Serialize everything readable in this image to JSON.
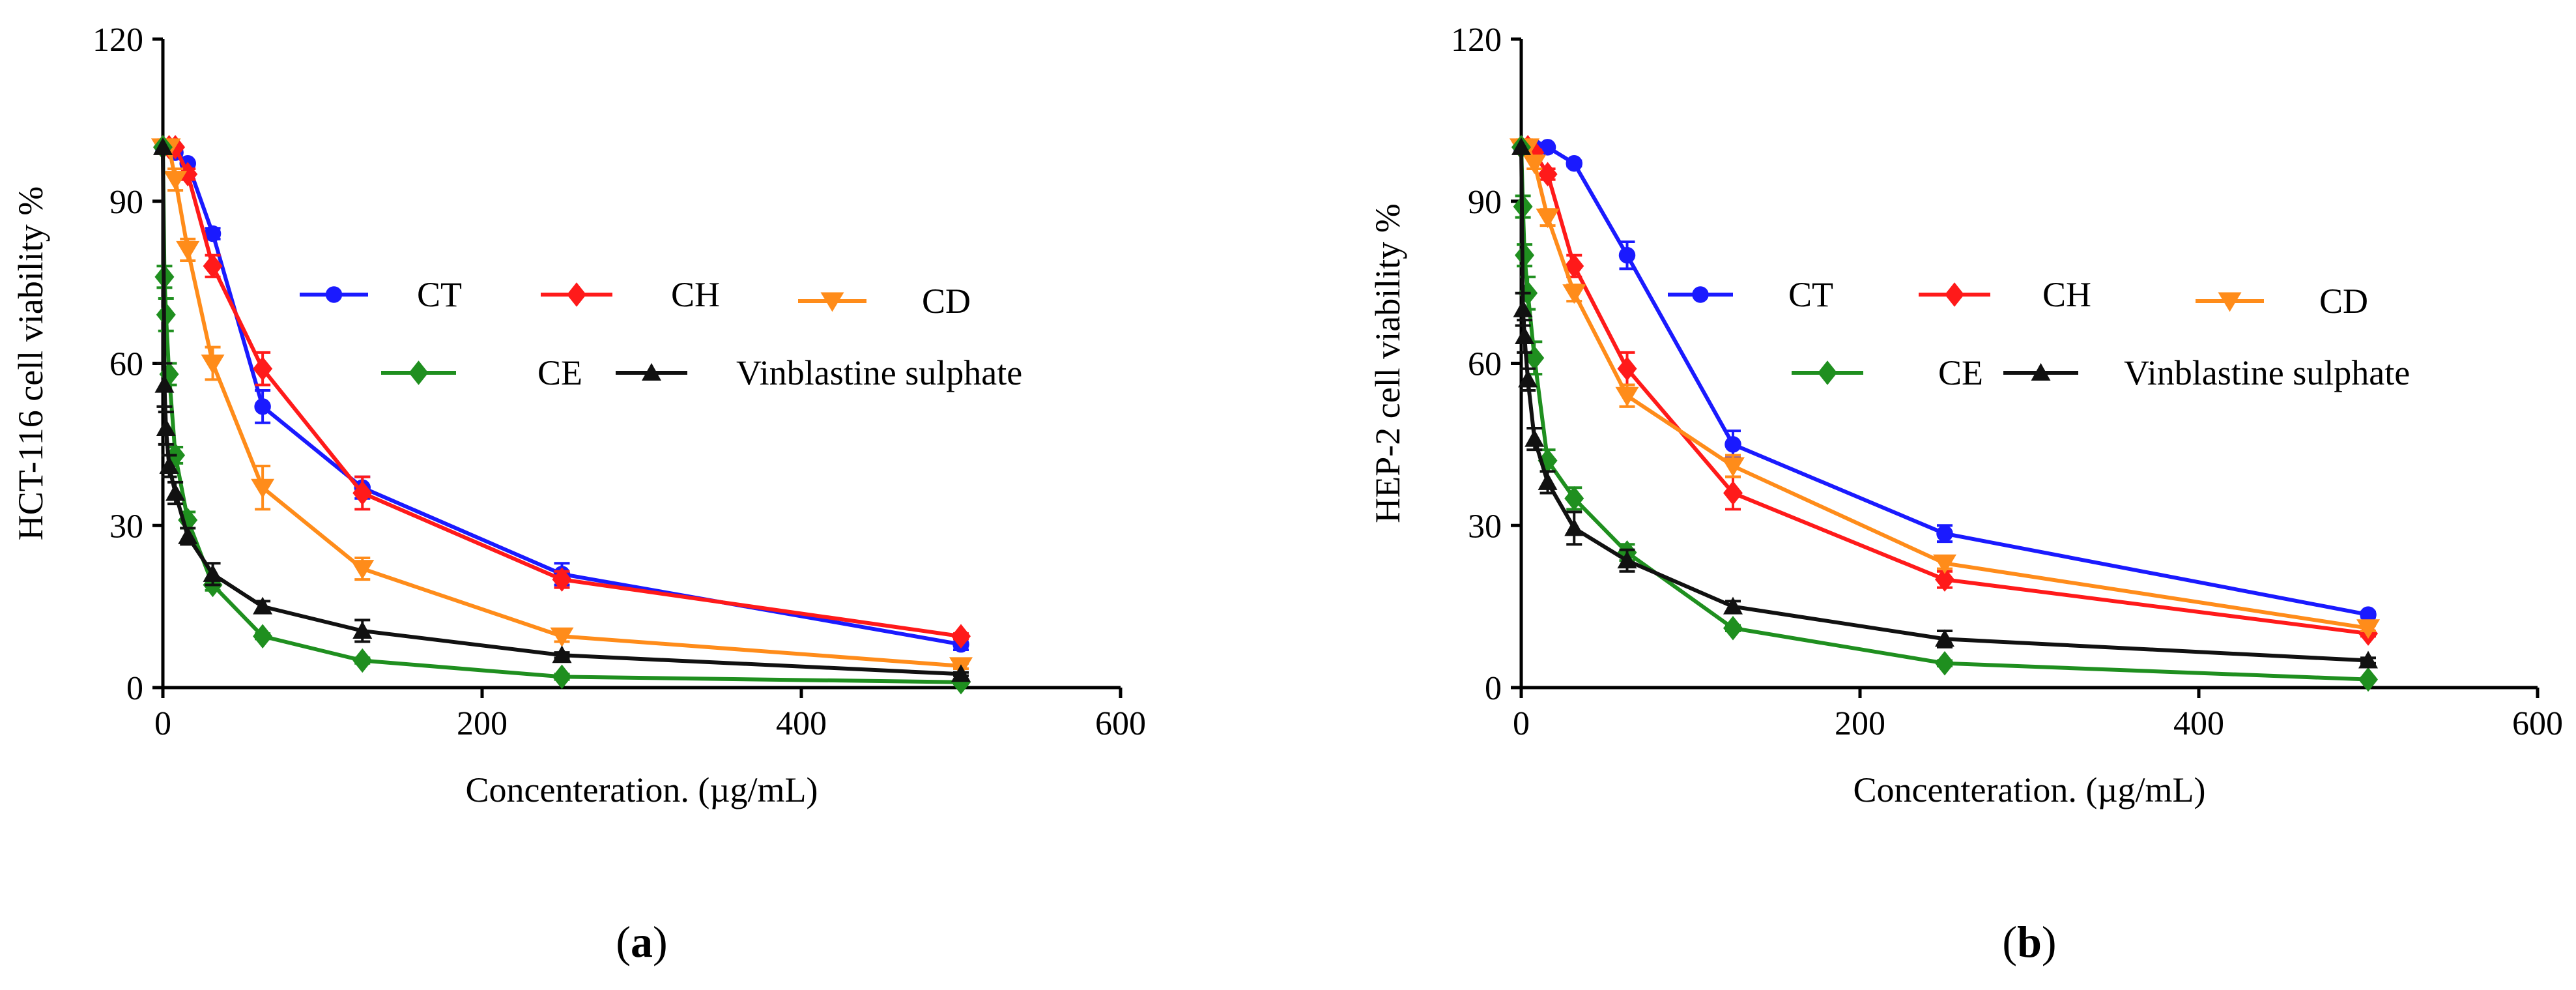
{
  "chart_data": [
    {
      "type": "line",
      "panel_label": "(a)",
      "ylabel": "HCT-116 cell viability %",
      "xlabel": "Concenteration. (µg/mL)",
      "xlim": [
        0,
        600
      ],
      "ylim": [
        0,
        120
      ],
      "xticks": [
        0,
        200,
        400,
        600
      ],
      "yticks": [
        0,
        30,
        60,
        90,
        120
      ],
      "grid": false,
      "legend_position": "center",
      "series": [
        {
          "name": "CT",
          "marker": "circle",
          "color": "#1a1aff",
          "x": [
            0,
            3.9,
            7.8,
            15.6,
            31.25,
            62.5,
            125,
            250,
            500
          ],
          "y": [
            100,
            100,
            99,
            97,
            84,
            52,
            37,
            21,
            8
          ],
          "err": [
            0,
            0,
            0,
            0,
            1,
            3,
            2,
            2,
            1
          ]
        },
        {
          "name": "CH",
          "marker": "diamond",
          "color": "#ff1a1a",
          "x": [
            0,
            3.9,
            7.8,
            15.6,
            31.25,
            62.5,
            125,
            250,
            500
          ],
          "y": [
            100,
            100,
            100,
            95,
            78,
            59,
            36,
            20,
            9.5
          ],
          "err": [
            0,
            0,
            0,
            1,
            2,
            3,
            3,
            1.5,
            0.5
          ]
        },
        {
          "name": "CD",
          "marker": "triangle-down",
          "color": "#ff8c1a",
          "x": [
            0,
            3.9,
            7.8,
            15.6,
            31.25,
            62.5,
            125,
            250,
            500
          ],
          "y": [
            100,
            100,
            94,
            81,
            60,
            37,
            22,
            9.5,
            4
          ],
          "err": [
            0,
            0,
            2,
            2,
            3,
            4,
            2,
            1,
            0.5
          ]
        },
        {
          "name": "CE",
          "marker": "diamond",
          "color": "#1f8f1f",
          "x": [
            0,
            1,
            1.95,
            3.9,
            7.8,
            15.6,
            31.25,
            62.5,
            125,
            250,
            500
          ],
          "y": [
            100,
            76,
            69,
            58,
            43,
            31,
            19,
            9.5,
            5,
            2,
            1
          ],
          "err": [
            0,
            2,
            3,
            2,
            1.5,
            1.5,
            1,
            0.5,
            0.5,
            0.5,
            0.3
          ]
        },
        {
          "name": "Vinblastine sulphate",
          "marker": "triangle-up",
          "color": "#111111",
          "x": [
            0,
            1,
            1.95,
            3.9,
            7.8,
            15.6,
            31.25,
            62.5,
            125,
            250,
            500
          ],
          "y": [
            100,
            56,
            48,
            41,
            36,
            28,
            21,
            15,
            10.5,
            6,
            2.5
          ],
          "err": [
            0,
            4,
            3,
            2,
            2,
            1.5,
            2,
            1,
            2,
            0.5,
            0.3
          ]
        }
      ]
    },
    {
      "type": "line",
      "panel_label": "(b)",
      "ylabel": "HEP-2 cell viability %",
      "xlabel": "Concenteration. (µg/mL)",
      "xlim": [
        0,
        600
      ],
      "ylim": [
        0,
        120
      ],
      "xticks": [
        0,
        200,
        400,
        600
      ],
      "yticks": [
        0,
        30,
        60,
        90,
        120
      ],
      "grid": false,
      "legend_position": "top-center",
      "series": [
        {
          "name": "CT",
          "marker": "circle",
          "color": "#1a1aff",
          "x": [
            0,
            3.9,
            7.8,
            15.6,
            31.25,
            62.5,
            125,
            250,
            500
          ],
          "y": [
            100,
            100,
            100,
            100,
            97,
            80,
            45,
            28.5,
            13.5
          ],
          "err": [
            0,
            0,
            0,
            0,
            0.5,
            2.5,
            2.5,
            1.5,
            0.5
          ]
        },
        {
          "name": "CH",
          "marker": "diamond",
          "color": "#ff1a1a",
          "x": [
            0,
            3.9,
            7.8,
            15.6,
            31.25,
            62.5,
            125,
            250,
            500
          ],
          "y": [
            100,
            100,
            99,
            95,
            78,
            59,
            36,
            20,
            10
          ],
          "err": [
            0,
            0,
            0.5,
            1,
            2,
            3,
            3,
            1.5,
            0.5
          ]
        },
        {
          "name": "CD",
          "marker": "triangle-down",
          "color": "#ff8c1a",
          "x": [
            0,
            3.9,
            7.8,
            15.6,
            31.25,
            62.5,
            125,
            250,
            500
          ],
          "y": [
            100,
            100,
            97,
            87,
            73,
            54,
            41,
            23,
            11
          ],
          "err": [
            0,
            0,
            1,
            1.5,
            1.5,
            2,
            2,
            1,
            0.5
          ]
        },
        {
          "name": "CE",
          "marker": "diamond",
          "color": "#1f8f1f",
          "x": [
            0,
            1,
            1.95,
            3.9,
            7.8,
            15.6,
            31.25,
            62.5,
            125,
            250,
            500
          ],
          "y": [
            100,
            89,
            80,
            73,
            61,
            42,
            35,
            25,
            11,
            4.5,
            1.5
          ],
          "err": [
            0,
            2,
            2,
            3,
            3,
            2,
            2,
            1.5,
            0.5,
            0.5,
            0.3
          ]
        },
        {
          "name": "Vinblastine sulphate",
          "marker": "triangle-up",
          "color": "#111111",
          "x": [
            0,
            1,
            1.95,
            3.9,
            7.8,
            15.6,
            31.25,
            62.5,
            125,
            250,
            500
          ],
          "y": [
            100,
            70,
            65,
            57,
            46,
            38,
            29.5,
            23.5,
            15,
            9,
            5
          ],
          "err": [
            0,
            3,
            3,
            2,
            2,
            2,
            3,
            2,
            1,
            1.5,
            0.5
          ]
        }
      ]
    }
  ]
}
